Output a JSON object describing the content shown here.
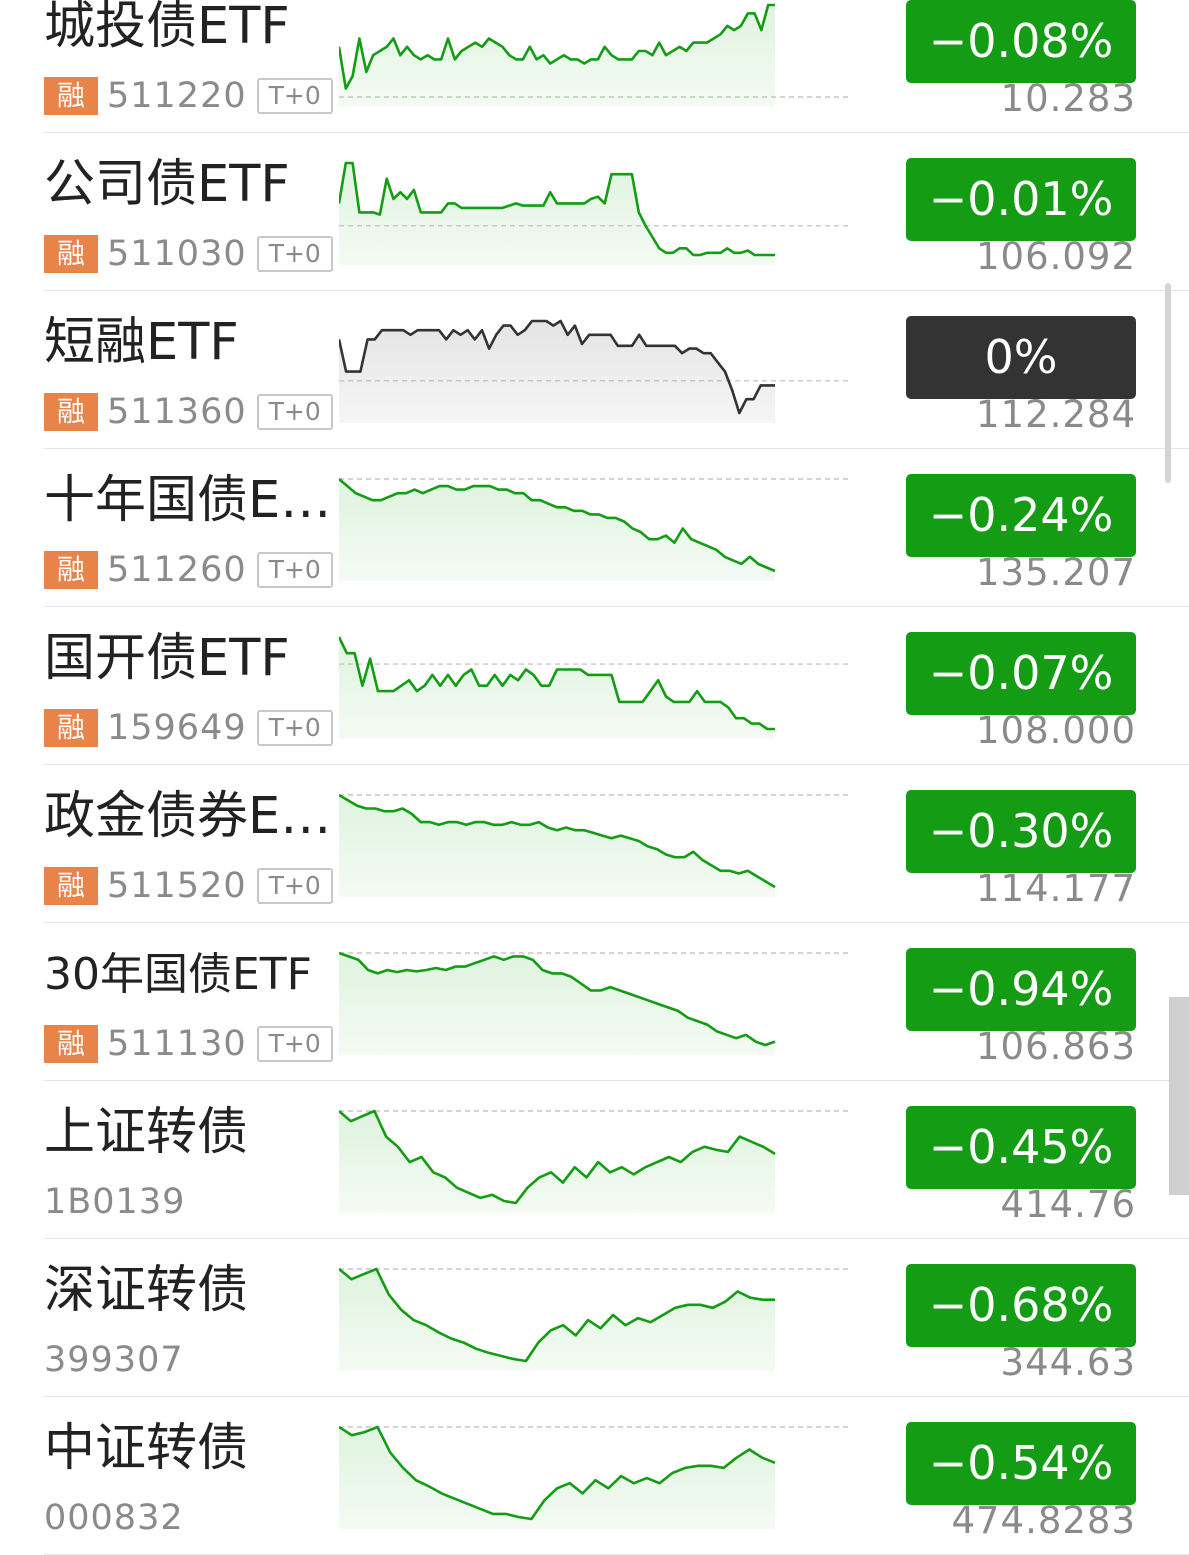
{
  "rows": [
    {
      "name": "城投债ETF",
      "margin": "融",
      "code": "511220",
      "t0": "T+0",
      "change": "-0.08%",
      "price": "10.283",
      "trend": "down",
      "series": [
        0.12,
        0.02,
        0.05,
        0.14,
        0.06,
        0.1,
        0.11,
        0.12,
        0.14,
        0.1,
        0.12,
        0.1,
        0.09,
        0.1,
        0.09,
        0.09,
        0.14,
        0.09,
        0.11,
        0.12,
        0.13,
        0.12,
        0.14,
        0.13,
        0.12,
        0.1,
        0.09,
        0.09,
        0.12,
        0.09,
        0.1,
        0.08,
        0.09,
        0.1,
        0.09,
        0.09,
        0.08,
        0.09,
        0.09,
        0.12,
        0.1,
        0.09,
        0.09,
        0.09,
        0.11,
        0.11,
        0.1,
        0.13,
        0.1,
        0.11,
        0.12,
        0.11,
        0.13,
        0.13,
        0.13,
        0.14,
        0.15,
        0.17,
        0.16,
        0.17,
        0.2,
        0.2,
        0.16,
        0.22,
        0.22
      ]
    },
    {
      "name": "公司债ETF",
      "margin": "融",
      "code": "511030",
      "t0": "T+0",
      "change": "-0.01%",
      "price": "106.092",
      "trend": "down",
      "series": [
        0.1,
        0.28,
        0.28,
        0.06,
        0.06,
        0.06,
        0.05,
        0.21,
        0.12,
        0.15,
        0.12,
        0.16,
        0.06,
        0.06,
        0.06,
        0.06,
        0.1,
        0.1,
        0.08,
        0.08,
        0.08,
        0.08,
        0.08,
        0.08,
        0.08,
        0.09,
        0.1,
        0.09,
        0.09,
        0.09,
        0.09,
        0.15,
        0.1,
        0.1,
        0.1,
        0.1,
        0.1,
        0.12,
        0.13,
        0.1,
        0.23,
        0.23,
        0.23,
        0.23,
        0.06,
        0.0,
        -0.05,
        -0.1,
        -0.12,
        -0.12,
        -0.1,
        -0.1,
        -0.13,
        -0.13,
        -0.12,
        -0.12,
        -0.12,
        -0.1,
        -0.12,
        -0.12,
        -0.11,
        -0.13,
        -0.13,
        -0.13,
        -0.13
      ]
    },
    {
      "name": "短融ETF",
      "margin": "融",
      "code": "511360",
      "t0": "T+0",
      "change": "0%",
      "price": "112.284",
      "trend": "flat",
      "series": [
        0.45,
        0.1,
        0.1,
        0.1,
        0.45,
        0.45,
        0.55,
        0.55,
        0.55,
        0.55,
        0.5,
        0.55,
        0.55,
        0.55,
        0.55,
        0.45,
        0.55,
        0.5,
        0.55,
        0.45,
        0.55,
        0.35,
        0.5,
        0.6,
        0.6,
        0.5,
        0.55,
        0.65,
        0.65,
        0.65,
        0.6,
        0.65,
        0.5,
        0.6,
        0.4,
        0.5,
        0.5,
        0.5,
        0.5,
        0.38,
        0.38,
        0.38,
        0.5,
        0.38,
        0.38,
        0.38,
        0.38,
        0.38,
        0.3,
        0.35,
        0.35,
        0.3,
        0.3,
        0.2,
        0.1,
        -0.1,
        -0.35,
        -0.2,
        -0.2,
        -0.05,
        -0.05,
        -0.05
      ]
    },
    {
      "name": "十年国债ETF",
      "margin": "融",
      "code": "511260",
      "t0": "T+0",
      "change": "-0.24%",
      "price": "135.207",
      "trend": "down",
      "series": [
        0.0,
        -0.02,
        -0.04,
        -0.05,
        -0.06,
        -0.06,
        -0.05,
        -0.04,
        -0.04,
        -0.03,
        -0.04,
        -0.03,
        -0.02,
        -0.02,
        -0.03,
        -0.03,
        -0.02,
        -0.02,
        -0.02,
        -0.03,
        -0.03,
        -0.04,
        -0.04,
        -0.06,
        -0.06,
        -0.07,
        -0.08,
        -0.08,
        -0.09,
        -0.09,
        -0.1,
        -0.1,
        -0.11,
        -0.11,
        -0.12,
        -0.14,
        -0.15,
        -0.17,
        -0.17,
        -0.16,
        -0.18,
        -0.14,
        -0.17,
        -0.18,
        -0.19,
        -0.2,
        -0.22,
        -0.23,
        -0.24,
        -0.22,
        -0.24,
        -0.25,
        -0.26
      ]
    },
    {
      "name": "国开债ETF",
      "margin": "融",
      "code": "159649",
      "t0": "T+0",
      "change": "-0.07%",
      "price": "108.000",
      "trend": "down",
      "series": [
        0.05,
        0.02,
        0.02,
        -0.04,
        0.01,
        -0.05,
        -0.05,
        -0.05,
        -0.04,
        -0.03,
        -0.05,
        -0.04,
        -0.02,
        -0.04,
        -0.02,
        -0.04,
        -0.02,
        -0.01,
        -0.04,
        -0.04,
        -0.02,
        -0.04,
        -0.02,
        -0.03,
        -0.01,
        -0.02,
        -0.04,
        -0.04,
        -0.01,
        -0.01,
        -0.01,
        -0.01,
        -0.02,
        -0.02,
        -0.02,
        -0.02,
        -0.07,
        -0.07,
        -0.07,
        -0.07,
        -0.05,
        -0.03,
        -0.06,
        -0.07,
        -0.07,
        -0.07,
        -0.05,
        -0.07,
        -0.07,
        -0.07,
        -0.08,
        -0.1,
        -0.1,
        -0.11,
        -0.11,
        -0.12,
        -0.12
      ]
    },
    {
      "name": "政金债券ETF",
      "margin": "融",
      "code": "511520",
      "t0": "T+0",
      "change": "-0.30%",
      "price": "114.177",
      "trend": "down",
      "series": [
        0.0,
        -0.02,
        -0.04,
        -0.05,
        -0.05,
        -0.06,
        -0.06,
        -0.05,
        -0.07,
        -0.1,
        -0.1,
        -0.11,
        -0.1,
        -0.1,
        -0.11,
        -0.1,
        -0.1,
        -0.11,
        -0.11,
        -0.1,
        -0.11,
        -0.11,
        -0.1,
        -0.12,
        -0.13,
        -0.12,
        -0.13,
        -0.13,
        -0.14,
        -0.15,
        -0.16,
        -0.15,
        -0.16,
        -0.17,
        -0.19,
        -0.2,
        -0.22,
        -0.23,
        -0.23,
        -0.21,
        -0.24,
        -0.26,
        -0.28,
        -0.28,
        -0.29,
        -0.28,
        -0.3,
        -0.32,
        -0.34
      ]
    },
    {
      "name": "30年国债ETF",
      "margin": "融",
      "code": "511130",
      "t0": "T+0",
      "change": "-0.94%",
      "price": "106.863",
      "trend": "down",
      "series": [
        0.0,
        -0.05,
        -0.1,
        -0.25,
        -0.3,
        -0.25,
        -0.28,
        -0.25,
        -0.27,
        -0.25,
        -0.22,
        -0.25,
        -0.2,
        -0.2,
        -0.15,
        -0.1,
        -0.05,
        -0.1,
        -0.05,
        -0.05,
        -0.1,
        -0.25,
        -0.3,
        -0.3,
        -0.35,
        -0.45,
        -0.55,
        -0.55,
        -0.5,
        -0.55,
        -0.6,
        -0.65,
        -0.7,
        -0.75,
        -0.8,
        -0.85,
        -0.95,
        -1.0,
        -1.05,
        -1.15,
        -1.2,
        -1.25,
        -1.2,
        -1.3,
        -1.35,
        -1.3
      ]
    },
    {
      "name": "上证转债",
      "margin": "",
      "code": "1B0139",
      "t0": "",
      "change": "-0.45%",
      "price": "414.76",
      "trend": "down",
      "series": [
        0.0,
        -0.1,
        -0.05,
        0.0,
        -0.25,
        -0.35,
        -0.5,
        -0.45,
        -0.6,
        -0.65,
        -0.75,
        -0.8,
        -0.85,
        -0.82,
        -0.88,
        -0.9,
        -0.75,
        -0.65,
        -0.6,
        -0.7,
        -0.55,
        -0.65,
        -0.5,
        -0.6,
        -0.55,
        -0.62,
        -0.55,
        -0.5,
        -0.45,
        -0.5,
        -0.4,
        -0.35,
        -0.38,
        -0.4,
        -0.25,
        -0.3,
        -0.35,
        -0.42
      ]
    },
    {
      "name": "深证转债",
      "margin": "",
      "code": "399307",
      "t0": "",
      "change": "-0.68%",
      "price": "344.63",
      "trend": "down",
      "series": [
        0.0,
        -0.1,
        -0.05,
        0.0,
        -0.25,
        -0.4,
        -0.5,
        -0.55,
        -0.62,
        -0.68,
        -0.72,
        -0.78,
        -0.82,
        -0.85,
        -0.88,
        -0.9,
        -0.72,
        -0.6,
        -0.55,
        -0.65,
        -0.5,
        -0.58,
        -0.45,
        -0.55,
        -0.48,
        -0.52,
        -0.45,
        -0.38,
        -0.35,
        -0.35,
        -0.38,
        -0.32,
        -0.22,
        -0.28,
        -0.3,
        -0.3
      ]
    },
    {
      "name": "中证转债",
      "margin": "",
      "code": "000832",
      "t0": "",
      "change": "-0.54%",
      "price": "474.8283",
      "trend": "down",
      "series": [
        0.0,
        -0.08,
        -0.05,
        0.0,
        -0.25,
        -0.4,
        -0.52,
        -0.58,
        -0.65,
        -0.7,
        -0.75,
        -0.8,
        -0.85,
        -0.85,
        -0.88,
        -0.9,
        -0.72,
        -0.6,
        -0.55,
        -0.65,
        -0.52,
        -0.6,
        -0.48,
        -0.55,
        -0.5,
        -0.55,
        -0.45,
        -0.4,
        -0.38,
        -0.38,
        -0.4,
        -0.3,
        -0.22,
        -0.3,
        -0.35
      ]
    }
  ],
  "colors": {
    "down": "#149c14",
    "flat": "#333333",
    "down_fill": "#dff3df",
    "flat_fill": "#e4e4e4",
    "margin_badge": "#e8834a"
  }
}
